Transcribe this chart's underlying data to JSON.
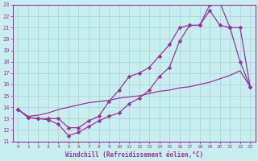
{
  "background_color": "#c8eef0",
  "grid_color": "#a8d8dc",
  "line_color": "#993399",
  "xlabel": "Windchill (Refroidissement éolien,°C)",
  "xlim": [
    -0.5,
    23.5
  ],
  "ylim": [
    11,
    23
  ],
  "xticks": [
    0,
    1,
    2,
    3,
    4,
    5,
    6,
    7,
    8,
    9,
    10,
    11,
    12,
    13,
    14,
    15,
    16,
    17,
    18,
    19,
    20,
    21,
    22,
    23
  ],
  "yticks": [
    11,
    12,
    13,
    14,
    15,
    16,
    17,
    18,
    19,
    20,
    21,
    22,
    23
  ],
  "curve1_x": [
    0,
    1,
    2,
    3,
    4,
    5,
    6,
    7,
    8,
    9,
    10,
    11,
    12,
    13,
    14,
    15,
    16,
    17,
    18,
    19,
    20,
    21,
    22,
    23
  ],
  "curve1_y": [
    13.8,
    13.1,
    13.0,
    12.9,
    12.5,
    11.5,
    11.8,
    12.3,
    12.8,
    13.2,
    13.5,
    14.3,
    14.8,
    15.5,
    16.7,
    17.5,
    19.8,
    21.2,
    21.2,
    23.0,
    23.2,
    21.0,
    18.0,
    15.8
  ],
  "curve2_x": [
    0,
    1,
    2,
    3,
    4,
    5,
    6,
    7,
    8,
    9,
    10,
    11,
    12,
    13,
    14,
    15,
    16,
    17,
    18,
    19,
    20,
    21,
    22,
    23
  ],
  "curve2_y": [
    13.8,
    13.1,
    13.0,
    13.0,
    13.0,
    12.2,
    12.2,
    12.8,
    13.2,
    14.5,
    15.5,
    16.7,
    17.0,
    17.5,
    18.5,
    19.5,
    21.0,
    21.2,
    21.2,
    22.5,
    21.2,
    21.0,
    21.0,
    15.8
  ],
  "curve3_x": [
    0,
    1,
    2,
    3,
    4,
    5,
    6,
    7,
    8,
    9,
    10,
    11,
    12,
    13,
    14,
    15,
    16,
    17,
    18,
    19,
    20,
    21,
    22,
    23
  ],
  "curve3_y": [
    13.8,
    13.2,
    13.3,
    13.5,
    13.8,
    14.0,
    14.2,
    14.4,
    14.5,
    14.6,
    14.8,
    14.9,
    15.0,
    15.2,
    15.4,
    15.5,
    15.7,
    15.8,
    16.0,
    16.2,
    16.5,
    16.8,
    17.2,
    15.8
  ]
}
